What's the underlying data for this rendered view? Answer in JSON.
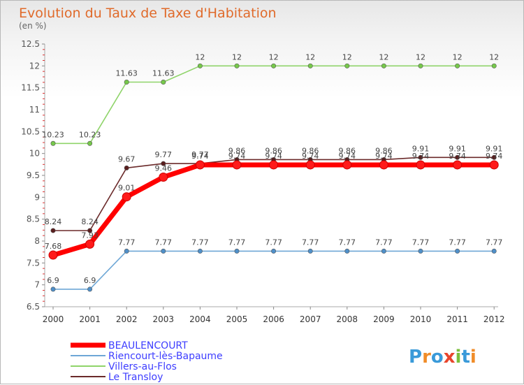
{
  "chart_data": {
    "type": "line",
    "title": "Evolution du Taux de Taxe d'Habitation",
    "subtitle": "(en %)",
    "xlabel": "",
    "ylabel": "",
    "x": [
      "2000",
      "2001",
      "2002",
      "2003",
      "2004",
      "2005",
      "2006",
      "2007",
      "2008",
      "2009",
      "2010",
      "2011",
      "2012"
    ],
    "ylim": [
      6.5,
      12.5
    ],
    "yticks": [
      "6.5",
      "7",
      "7.5",
      "8",
      "8.5",
      "9",
      "9.5",
      "10",
      "10.5",
      "11",
      "11.5",
      "12",
      "12.5"
    ],
    "grid": false,
    "legend": "bottom-left",
    "series": [
      {
        "name": "Villers-au-Flos",
        "color": "#8fd46a",
        "dot": "#76c94a",
        "values": [
          10.23,
          10.23,
          11.63,
          11.63,
          12,
          12,
          12,
          12,
          12,
          12,
          12,
          12,
          12
        ],
        "labels": [
          "10.23",
          "10.23",
          "11.63",
          "11.63",
          "12",
          "12",
          "12",
          "12",
          "12",
          "12",
          "12",
          "12",
          "12"
        ]
      },
      {
        "name": "Riencourt-lès-Bapaume",
        "color": "#6ea7d6",
        "dot": "#4f8fc8",
        "values": [
          6.9,
          6.9,
          7.77,
          7.77,
          7.77,
          7.77,
          7.77,
          7.77,
          7.77,
          7.77,
          7.77,
          7.77,
          7.77
        ],
        "labels": [
          "6.9",
          "6.9",
          "7.77",
          "7.77",
          "7.77",
          "7.77",
          "7.77",
          "7.77",
          "7.77",
          "7.77",
          "7.77",
          "7.77",
          "7.77"
        ]
      },
      {
        "name": "Le Transloy",
        "color": "#6b2a2a",
        "dot": "#5a1e1e",
        "values": [
          8.24,
          8.24,
          9.67,
          9.77,
          9.77,
          9.86,
          9.86,
          9.86,
          9.86,
          9.86,
          9.91,
          9.91,
          9.91
        ],
        "labels": [
          "8.24",
          "8.24",
          "9.67",
          "9.77",
          "9.77",
          "9.86",
          "9.86",
          "9.86",
          "9.86",
          "9.86",
          "9.91",
          "9.91",
          "9.91"
        ]
      },
      {
        "name": "BEAULENCOURT",
        "color": "#ff0000",
        "dot": "#ff1a1a",
        "values": [
          7.68,
          7.93,
          9.01,
          9.46,
          9.74,
          9.74,
          9.74,
          9.74,
          9.74,
          9.74,
          9.74,
          9.74,
          9.74
        ],
        "labels": [
          "7.68",
          "7.93",
          "9.01",
          "9.46",
          "9.74",
          "9.74",
          "9.74",
          "9.74",
          "9.74",
          "9.74",
          "9.74",
          "9.74",
          "9.74"
        ]
      }
    ],
    "legend_order": [
      "BEAULENCOURT",
      "Riencourt-lès-Bapaume",
      "Villers-au-Flos",
      "Le Transloy"
    ]
  },
  "brand": {
    "logo_text": "Proxiti",
    "logo_colors": [
      "#3a9ad9",
      "#f08c28",
      "#3a9ad9",
      "#e8452c",
      "#7bbf3c",
      "#3a9ad9",
      "#f08c28"
    ]
  }
}
